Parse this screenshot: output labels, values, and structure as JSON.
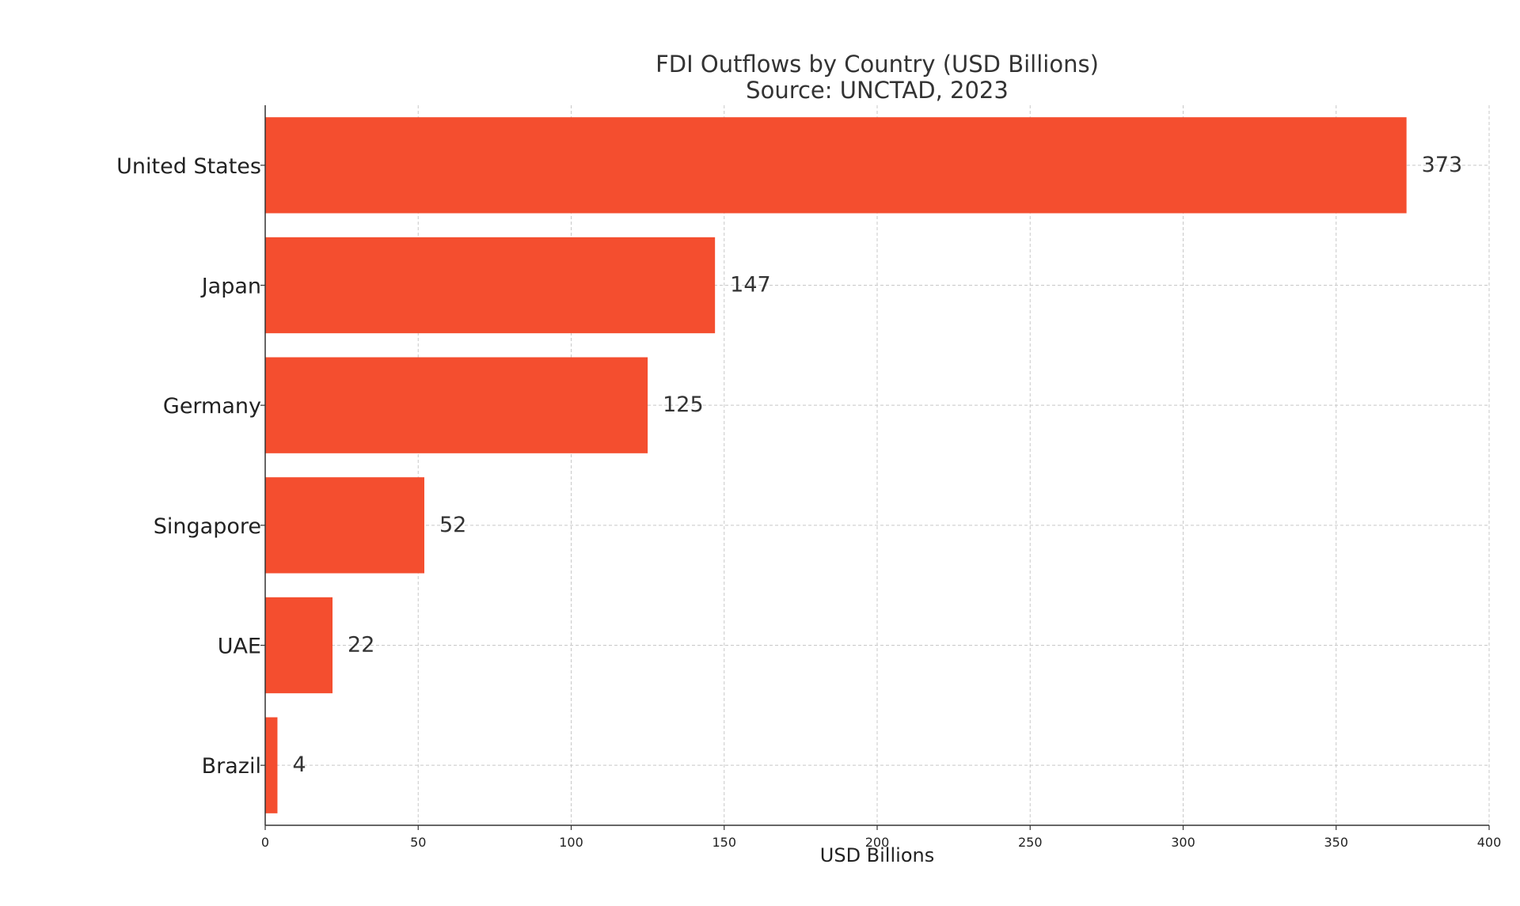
{
  "chart_data": {
    "type": "bar",
    "orientation": "horizontal",
    "title": "FDI Outflows by Country (USD Billions)",
    "subtitle": "Source: UNCTAD, 2023",
    "xlabel": "USD Billions",
    "ylabel": "",
    "categories": [
      "United States",
      "Japan",
      "Germany",
      "Singapore",
      "UAE",
      "Brazil"
    ],
    "values": [
      373,
      147,
      125,
      52,
      22,
      4
    ],
    "data_labels": [
      "373",
      "147",
      "125",
      "52",
      "22",
      "4"
    ],
    "xlim": [
      0,
      400
    ],
    "xticks": [
      0,
      50,
      100,
      150,
      200,
      250,
      300,
      350,
      400
    ],
    "xtick_labels": [
      "0",
      "50",
      "100",
      "150",
      "200",
      "250",
      "300",
      "350",
      "400"
    ],
    "grid": true,
    "legend": "none",
    "bar_color": "#f44e2f"
  }
}
